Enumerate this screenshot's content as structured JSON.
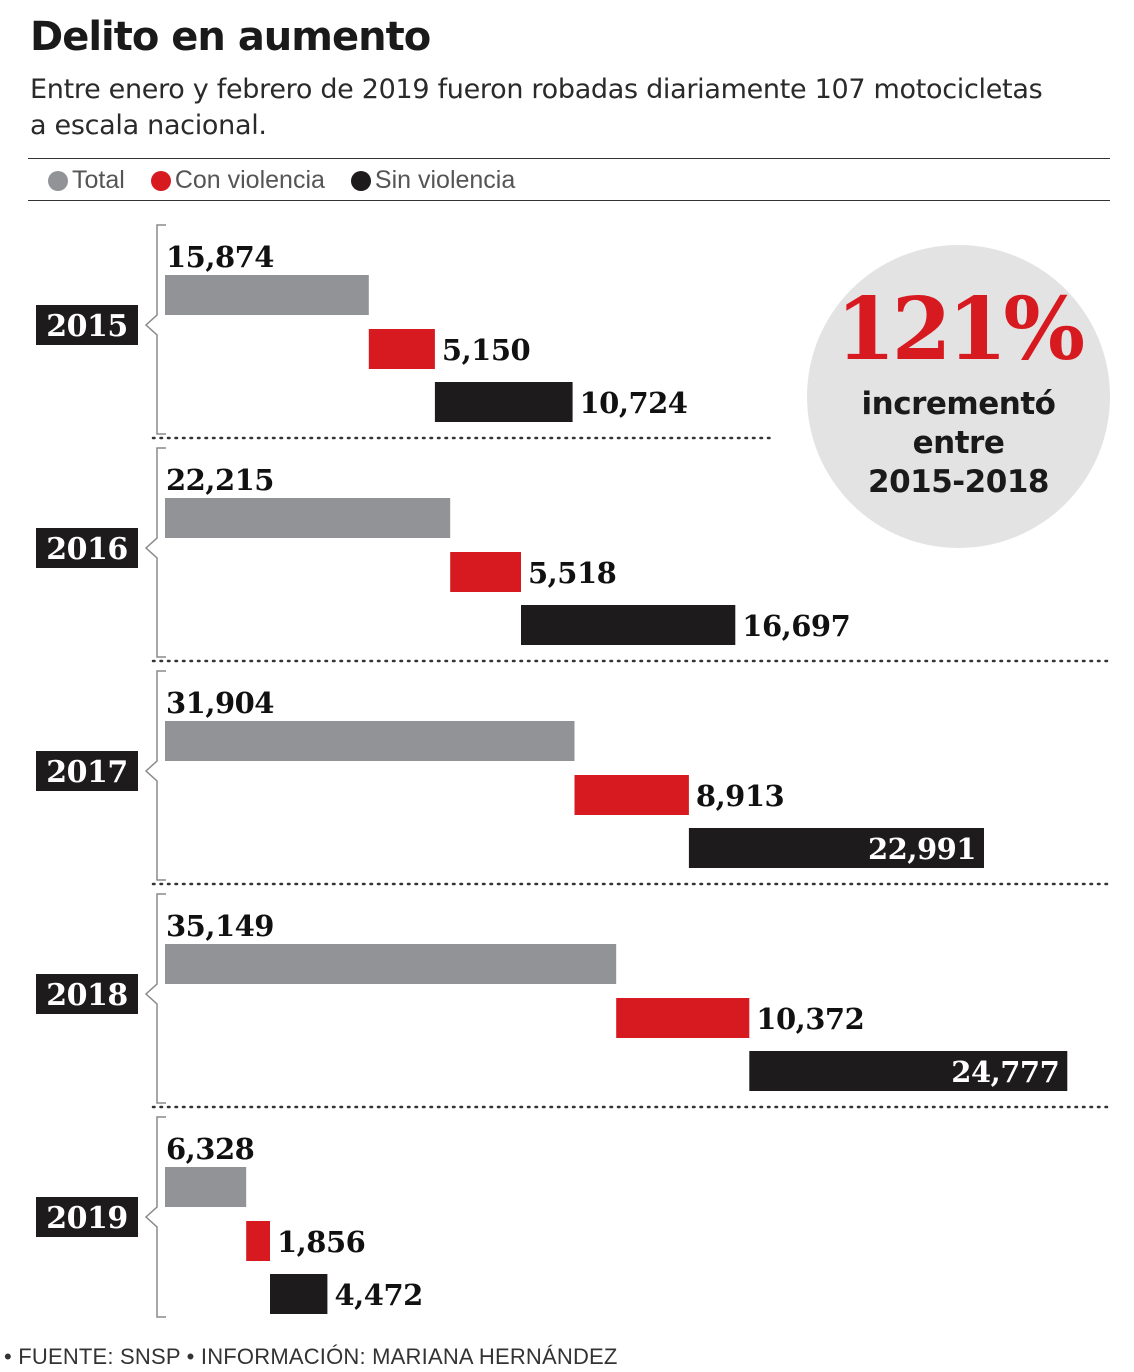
{
  "title": "Delito en aumento",
  "subtitle": "Entre enero y febrero de 2019 fueron robadas diariamente 107 motocicletas a escala nacional.",
  "legend": [
    {
      "label": "Total",
      "color": "#929396"
    },
    {
      "label": "Con violencia",
      "color": "#d71920"
    },
    {
      "label": "Sin violencia",
      "color": "#1e1b1c"
    }
  ],
  "highlight": {
    "percent": "121%",
    "text": "incrementó\nentre\n2015-2018"
  },
  "footer": "• FUENTE: SNSP • INFORMACIÓN: MARIANA HERNÁNDEZ",
  "chart_data": {
    "type": "bar",
    "categories": [
      "2015",
      "2016",
      "2017",
      "2018",
      "2019"
    ],
    "series": [
      {
        "name": "Total",
        "color": "#929396",
        "values": [
          15874,
          22215,
          31904,
          35149,
          6328
        ],
        "labels": [
          "15,874",
          "22,215",
          "31,904",
          "35,149",
          "6,328"
        ]
      },
      {
        "name": "Con violencia",
        "color": "#d71920",
        "values": [
          5150,
          5518,
          8913,
          10372,
          1856
        ],
        "labels": [
          "5,150",
          "5,518",
          "8,913",
          "10,372",
          "1,856"
        ]
      },
      {
        "name": "Sin violencia",
        "color": "#1e1b1c",
        "values": [
          10724,
          16697,
          22991,
          24777,
          4472
        ],
        "labels": [
          "10,724",
          "16,697",
          "22,991",
          "24,777",
          "4,472"
        ]
      }
    ],
    "layout_note": "waterfall-style: Con violencia starts at end of Total; Sin violencia starts at end of Con violencia",
    "grid": false,
    "legend_position": "top-left"
  }
}
